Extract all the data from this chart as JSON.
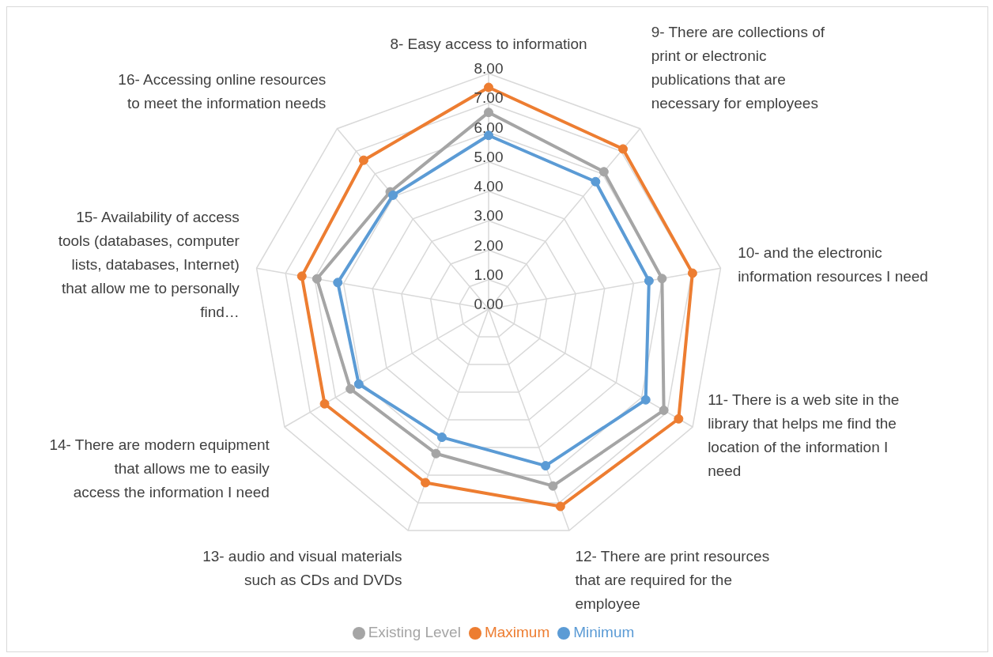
{
  "chart_data": {
    "type": "radar",
    "categories": [
      "8- Easy access to information",
      "9- There are collections of print or electronic publications that are necessary for employees",
      "10- and the electronic information resources I need",
      "11- There is a web site in the library that helps me find the location of the information I need",
      "12- There are print resources that are required for the employee",
      "13- audio and visual materials such as CDs and DVDs",
      "14- There are modern equipment that allows me to easily access the information I need",
      "15- Availability of access tools (databases, computer lists, databases, Internet) that allow me to personally find…",
      "16- Accessing online resources to meet the information needs"
    ],
    "series": [
      {
        "name": "Minimum",
        "color": "#5b9bd5",
        "values": [
          5.9,
          5.65,
          5.53,
          6.16,
          5.66,
          4.63,
          5.09,
          5.2,
          5.05
        ]
      },
      {
        "name": "Maximum",
        "color": "#ed7d31",
        "values": [
          7.53,
          7.1,
          7.03,
          7.45,
          7.13,
          6.27,
          6.43,
          6.44,
          6.6
        ]
      },
      {
        "name": "Existing Level",
        "color": "#a5a5a5",
        "values": [
          6.68,
          6.09,
          5.98,
          6.87,
          6.39,
          5.22,
          5.42,
          5.92,
          5.2
        ]
      }
    ],
    "ylim": [
      0,
      8
    ],
    "yticks": [
      {
        "value": 0,
        "label": "0.00"
      },
      {
        "value": 1,
        "label": "1.00"
      },
      {
        "value": 2,
        "label": "2.00"
      },
      {
        "value": 3,
        "label": "3.00"
      },
      {
        "value": 4,
        "label": "4.00"
      },
      {
        "value": 5,
        "label": "5.00"
      },
      {
        "value": 6,
        "label": "6.00"
      },
      {
        "value": 7,
        "label": "7.00"
      },
      {
        "value": 8,
        "label": "8.00"
      }
    ],
    "grid": true,
    "legend": "bottom",
    "marker": "circle",
    "line_style": "solid"
  }
}
